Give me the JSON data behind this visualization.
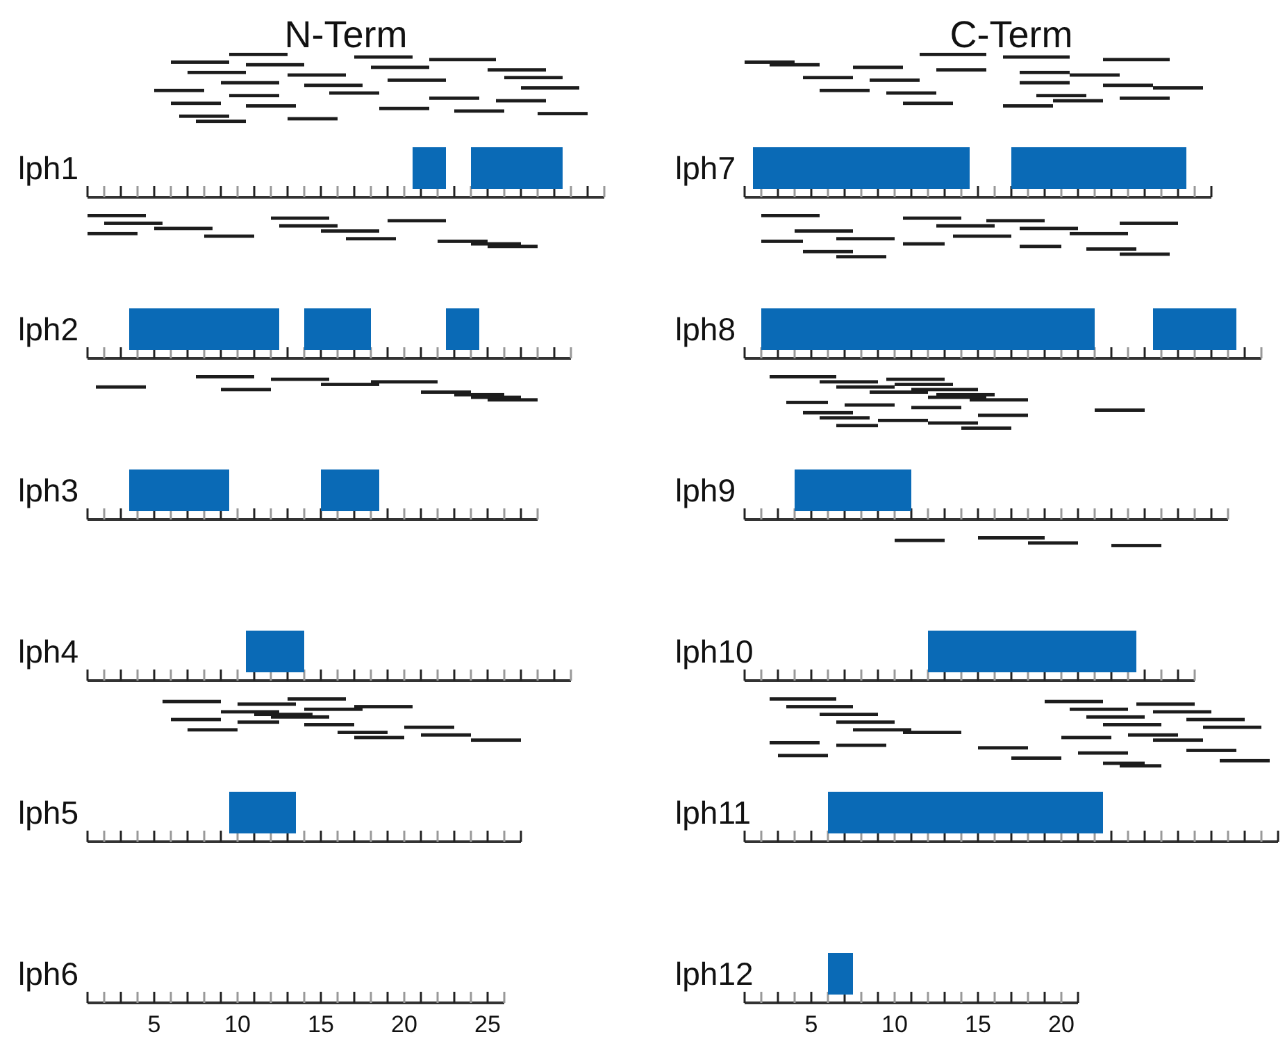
{
  "chart_data": [
    {
      "type": "bar",
      "orientation": "horizontal",
      "title": "N-Term",
      "categories": [
        null,
        "lph1",
        null,
        "lph2",
        null,
        "lph3",
        null,
        "lph4",
        null,
        "lph5",
        null,
        "lph6"
      ],
      "xlim": [
        1,
        32
      ],
      "xticks": [
        5,
        10,
        15,
        20,
        25
      ],
      "series": [
        {
          "color": "#333333",
          "base": [
            null,
            1,
            null,
            1,
            null,
            1,
            null,
            1,
            null,
            1,
            null,
            1
          ],
          "values": [
            null,
            31,
            null,
            29,
            null,
            27,
            null,
            29,
            null,
            26,
            null,
            25
          ]
        },
        {
          "color": "#0a6ab6",
          "base": [
            null,
            20.5,
            null,
            3.5,
            null,
            3.5,
            null,
            10.5,
            null,
            9.5,
            null,
            null
          ],
          "values": [
            null,
            2,
            null,
            9,
            null,
            6,
            null,
            3.5,
            null,
            4,
            null,
            null
          ]
        },
        {
          "color": "#0a6ab6",
          "base": [
            null,
            24,
            null,
            14,
            null,
            15,
            null,
            null,
            null,
            null,
            null,
            null
          ],
          "values": [
            null,
            5.5,
            null,
            4,
            null,
            3.5,
            null,
            null,
            null,
            null,
            null,
            null
          ]
        },
        {
          "color": "#0a6ab6",
          "base": [
            null,
            null,
            null,
            22.5,
            null,
            null,
            null,
            null,
            null,
            null,
            null,
            null
          ],
          "values": [
            null,
            null,
            null,
            2,
            null,
            null,
            null,
            null,
            null,
            null,
            null,
            null
          ]
        },
        {
          "color": "#1c1c1c",
          "base": [
            9.5,
            null,
            1,
            null,
            7.5,
            null,
            null,
            null,
            13,
            null,
            null,
            null
          ],
          "values": [
            3.5,
            null,
            3.5,
            null,
            3.5,
            null,
            null,
            null,
            3.5,
            null,
            null,
            null
          ]
        },
        {
          "color": "#1c1c1c",
          "base": [
            17,
            null,
            12,
            null,
            12,
            null,
            null,
            null,
            5.5,
            null,
            null,
            null
          ],
          "values": [
            3.5,
            null,
            3.5,
            null,
            3.5,
            null,
            null,
            null,
            3.5,
            null,
            null,
            null
          ]
        },
        {
          "color": "#1c1c1c",
          "base": [
            21.5,
            null,
            19,
            null,
            18,
            null,
            null,
            null,
            10,
            null,
            null,
            null
          ],
          "values": [
            4,
            null,
            3.5,
            null,
            4,
            null,
            null,
            null,
            3.5,
            null,
            null,
            null
          ]
        },
        {
          "color": "#1c1c1c",
          "base": [
            6,
            null,
            2,
            null,
            15,
            null,
            null,
            null,
            17,
            null,
            null,
            null
          ],
          "values": [
            3.5,
            null,
            3.5,
            null,
            3.5,
            null,
            null,
            null,
            3.5,
            null,
            null,
            null
          ]
        },
        {
          "color": "#1c1c1c",
          "base": [
            10.5,
            null,
            12.5,
            null,
            1.5,
            null,
            null,
            null,
            14,
            null,
            null,
            null
          ],
          "values": [
            3.5,
            null,
            3.5,
            null,
            3,
            null,
            null,
            null,
            3.5,
            null,
            null,
            null
          ]
        },
        {
          "color": "#1c1c1c",
          "base": [
            18,
            null,
            5,
            null,
            9,
            null,
            null,
            null,
            9,
            null,
            null,
            null
          ],
          "values": [
            3.5,
            null,
            3.5,
            null,
            3,
            null,
            null,
            null,
            3.5,
            null,
            null,
            null
          ]
        },
        {
          "color": "#1c1c1c",
          "base": [
            25,
            null,
            15,
            null,
            21,
            null,
            null,
            null,
            11,
            null,
            null,
            null
          ],
          "values": [
            3.5,
            null,
            3.5,
            null,
            3,
            null,
            null,
            null,
            3.5,
            null,
            null,
            null
          ]
        },
        {
          "color": "#1c1c1c",
          "base": [
            7,
            null,
            1,
            null,
            23,
            null,
            null,
            null,
            12,
            null,
            null,
            null
          ],
          "values": [
            3.5,
            null,
            3,
            null,
            3,
            null,
            null,
            null,
            3.5,
            null,
            null,
            null
          ]
        },
        {
          "color": "#1c1c1c",
          "base": [
            13,
            null,
            8,
            null,
            24,
            null,
            null,
            null,
            6,
            null,
            null,
            null
          ],
          "values": [
            3.5,
            null,
            3,
            null,
            3,
            null,
            null,
            null,
            3,
            null,
            null,
            null
          ]
        },
        {
          "color": "#1c1c1c",
          "base": [
            26,
            null,
            16.5,
            null,
            25,
            null,
            null,
            null,
            10,
            null,
            null,
            null
          ],
          "values": [
            3.5,
            null,
            3,
            null,
            3,
            null,
            null,
            null,
            2.5,
            null,
            null,
            null
          ]
        },
        {
          "color": "#1c1c1c",
          "base": [
            19,
            null,
            22,
            null,
            null,
            null,
            null,
            null,
            14,
            null,
            null,
            null
          ],
          "values": [
            3.5,
            null,
            3,
            null,
            null,
            null,
            null,
            null,
            3,
            null,
            null,
            null
          ]
        },
        {
          "color": "#1c1c1c",
          "base": [
            9,
            null,
            24,
            null,
            null,
            null,
            null,
            null,
            20,
            null,
            null,
            null
          ],
          "values": [
            3.5,
            null,
            3,
            null,
            null,
            null,
            null,
            null,
            3,
            null,
            null,
            null
          ]
        },
        {
          "color": "#1c1c1c",
          "base": [
            14,
            null,
            25,
            null,
            null,
            null,
            null,
            null,
            7,
            null,
            null,
            null
          ],
          "values": [
            3.5,
            null,
            3,
            null,
            null,
            null,
            null,
            null,
            3,
            null,
            null,
            null
          ]
        },
        {
          "color": "#1c1c1c",
          "base": [
            27,
            null,
            null,
            null,
            null,
            null,
            null,
            null,
            16,
            null,
            null,
            null
          ],
          "values": [
            3.5,
            null,
            null,
            null,
            null,
            null,
            null,
            null,
            3,
            null,
            null,
            null
          ]
        },
        {
          "color": "#1c1c1c",
          "base": [
            5,
            null,
            null,
            null,
            null,
            null,
            null,
            null,
            21,
            null,
            null,
            null
          ],
          "values": [
            3,
            null,
            null,
            null,
            null,
            null,
            null,
            null,
            3,
            null,
            null,
            null
          ]
        },
        {
          "color": "#1c1c1c",
          "base": [
            15.5,
            null,
            null,
            null,
            null,
            null,
            null,
            null,
            17,
            null,
            null,
            null
          ],
          "values": [
            3,
            null,
            null,
            null,
            null,
            null,
            null,
            null,
            3,
            null,
            null,
            null
          ]
        },
        {
          "color": "#1c1c1c",
          "base": [
            9.5,
            null,
            null,
            null,
            null,
            null,
            null,
            null,
            24,
            null,
            null,
            null
          ],
          "values": [
            3,
            null,
            null,
            null,
            null,
            null,
            null,
            null,
            3,
            null,
            null,
            null
          ]
        },
        {
          "color": "#1c1c1c",
          "base": [
            21.5,
            null,
            null,
            null,
            null,
            null,
            null,
            null,
            null,
            null,
            null,
            null
          ],
          "values": [
            3,
            null,
            null,
            null,
            null,
            null,
            null,
            null,
            null,
            null,
            null,
            null
          ]
        },
        {
          "color": "#1c1c1c",
          "base": [
            25.5,
            null,
            null,
            null,
            null,
            null,
            null,
            null,
            null,
            null,
            null,
            null
          ],
          "values": [
            3,
            null,
            null,
            null,
            null,
            null,
            null,
            null,
            null,
            null,
            null,
            null
          ]
        },
        {
          "color": "#1c1c1c",
          "base": [
            6,
            null,
            null,
            null,
            null,
            null,
            null,
            null,
            null,
            null,
            null,
            null
          ],
          "values": [
            3,
            null,
            null,
            null,
            null,
            null,
            null,
            null,
            null,
            null,
            null,
            null
          ]
        },
        {
          "color": "#1c1c1c",
          "base": [
            10.5,
            null,
            null,
            null,
            null,
            null,
            null,
            null,
            null,
            null,
            null,
            null
          ],
          "values": [
            3,
            null,
            null,
            null,
            null,
            null,
            null,
            null,
            null,
            null,
            null,
            null
          ]
        },
        {
          "color": "#1c1c1c",
          "base": [
            18.5,
            null,
            null,
            null,
            null,
            null,
            null,
            null,
            null,
            null,
            null,
            null
          ],
          "values": [
            3,
            null,
            null,
            null,
            null,
            null,
            null,
            null,
            null,
            null,
            null,
            null
          ]
        },
        {
          "color": "#1c1c1c",
          "base": [
            23,
            null,
            null,
            null,
            null,
            null,
            null,
            null,
            null,
            null,
            null,
            null
          ],
          "values": [
            3,
            null,
            null,
            null,
            null,
            null,
            null,
            null,
            null,
            null,
            null,
            null
          ]
        },
        {
          "color": "#1c1c1c",
          "base": [
            28,
            null,
            null,
            null,
            null,
            null,
            null,
            null,
            null,
            null,
            null,
            null
          ],
          "values": [
            3,
            null,
            null,
            null,
            null,
            null,
            null,
            null,
            null,
            null,
            null,
            null
          ]
        },
        {
          "color": "#1c1c1c",
          "base": [
            6.5,
            null,
            null,
            null,
            null,
            null,
            null,
            null,
            null,
            null,
            null,
            null
          ],
          "values": [
            3,
            null,
            null,
            null,
            null,
            null,
            null,
            null,
            null,
            null,
            null,
            null
          ]
        },
        {
          "color": "#1c1c1c",
          "base": [
            13,
            null,
            null,
            null,
            null,
            null,
            null,
            null,
            null,
            null,
            null,
            null
          ],
          "values": [
            3,
            null,
            null,
            null,
            null,
            null,
            null,
            null,
            null,
            null,
            null,
            null
          ]
        },
        {
          "color": "#1c1c1c",
          "base": [
            7.5,
            null,
            null,
            null,
            null,
            null,
            null,
            null,
            null,
            null,
            null,
            null
          ],
          "values": [
            3,
            null,
            null,
            null,
            null,
            null,
            null,
            null,
            null,
            null,
            null,
            null
          ]
        }
      ]
    },
    {
      "type": "bar",
      "orientation": "horizontal",
      "title": "C-Term",
      "categories": [
        null,
        "lph7",
        null,
        "lph8",
        null,
        "lph9",
        null,
        "lph10",
        null,
        "lph11",
        null,
        "lph12"
      ],
      "xlim": [
        1,
        33
      ],
      "xticks": [
        5,
        10,
        15,
        20
      ],
      "series": [
        {
          "color": "#333333",
          "base": [
            null,
            1,
            null,
            1,
            null,
            1,
            null,
            1,
            null,
            1,
            null,
            1
          ],
          "values": [
            null,
            28,
            null,
            31,
            null,
            29,
            null,
            27,
            null,
            32,
            null,
            20
          ]
        },
        {
          "color": "#0a6ab6",
          "base": [
            null,
            1.5,
            null,
            2,
            null,
            4,
            null,
            12,
            null,
            6,
            null,
            6
          ],
          "values": [
            null,
            13,
            null,
            20,
            null,
            7,
            null,
            12.5,
            null,
            16.5,
            null,
            1.5
          ]
        },
        {
          "color": "#0a6ab6",
          "base": [
            null,
            17,
            null,
            25.5,
            null,
            null,
            null,
            null,
            null,
            null,
            null,
            null
          ],
          "values": [
            null,
            10.5,
            null,
            5,
            null,
            null,
            null,
            null,
            null,
            null,
            null,
            null
          ]
        },
        {
          "color": "#1c1c1c",
          "base": [
            11.5,
            null,
            2,
            null,
            2.5,
            null,
            15,
            null,
            2.5,
            null,
            null,
            null
          ],
          "values": [
            4,
            null,
            3.5,
            null,
            4,
            null,
            4,
            null,
            4,
            null,
            null,
            null
          ]
        },
        {
          "color": "#1c1c1c",
          "base": [
            16.5,
            null,
            10.5,
            null,
            9.5,
            null,
            10,
            null,
            19,
            null,
            null,
            null
          ],
          "values": [
            4,
            null,
            3.5,
            null,
            3.5,
            null,
            3,
            null,
            3.5,
            null,
            null,
            null
          ]
        },
        {
          "color": "#1c1c1c",
          "base": [
            22.5,
            null,
            15.5,
            null,
            5.5,
            null,
            18,
            null,
            24.5,
            null,
            null,
            null
          ],
          "values": [
            4,
            null,
            3.5,
            null,
            3.5,
            null,
            3,
            null,
            3.5,
            null,
            null,
            null
          ]
        },
        {
          "color": "#1c1c1c",
          "base": [
            1,
            null,
            23.5,
            null,
            10,
            null,
            23,
            null,
            3.5,
            null,
            null,
            null
          ],
          "values": [
            3,
            null,
            3.5,
            null,
            3.5,
            null,
            3,
            null,
            4,
            null,
            null,
            null
          ]
        },
        {
          "color": "#1c1c1c",
          "base": [
            2.5,
            null,
            12.5,
            null,
            6.5,
            null,
            null,
            null,
            20.5,
            null,
            null,
            null
          ],
          "values": [
            3,
            null,
            3.5,
            null,
            3.5,
            null,
            null,
            null,
            3.5,
            null,
            null,
            null
          ]
        },
        {
          "color": "#1c1c1c",
          "base": [
            7.5,
            null,
            17.5,
            null,
            11,
            null,
            null,
            null,
            25.5,
            null,
            null,
            null
          ],
          "values": [
            3,
            null,
            3.5,
            null,
            4,
            null,
            null,
            null,
            3.5,
            null,
            null,
            null
          ]
        },
        {
          "color": "#1c1c1c",
          "base": [
            12.5,
            null,
            4,
            null,
            8.5,
            null,
            null,
            null,
            5.5,
            null,
            null,
            null
          ],
          "values": [
            3,
            null,
            3.5,
            null,
            3.5,
            null,
            null,
            null,
            3.5,
            null,
            null,
            null
          ]
        },
        {
          "color": "#1c1c1c",
          "base": [
            17.5,
            null,
            20.5,
            null,
            12.5,
            null,
            null,
            null,
            21.5,
            null,
            null,
            null
          ],
          "values": [
            3,
            null,
            3.5,
            null,
            3.5,
            null,
            null,
            null,
            3.5,
            null,
            null,
            null
          ]
        },
        {
          "color": "#1c1c1c",
          "base": [
            20.5,
            null,
            13.5,
            null,
            12,
            null,
            null,
            null,
            27.5,
            null,
            null,
            null
          ],
          "values": [
            3,
            null,
            3.5,
            null,
            3.5,
            null,
            null,
            null,
            3.5,
            null,
            null,
            null
          ]
        },
        {
          "color": "#1c1c1c",
          "base": [
            4.5,
            null,
            6.5,
            null,
            14.5,
            null,
            null,
            null,
            6.5,
            null,
            null,
            null
          ],
          "values": [
            3,
            null,
            3.5,
            null,
            3.5,
            null,
            null,
            null,
            3.5,
            null,
            null,
            null
          ]
        },
        {
          "color": "#1c1c1c",
          "base": [
            8.5,
            null,
            2,
            null,
            3.5,
            null,
            null,
            null,
            22.5,
            null,
            null,
            null
          ],
          "values": [
            3,
            null,
            2.5,
            null,
            2.5,
            null,
            null,
            null,
            3.5,
            null,
            null,
            null
          ]
        },
        {
          "color": "#1c1c1c",
          "base": [
            17.5,
            null,
            10.5,
            null,
            7,
            null,
            null,
            null,
            28.5,
            null,
            null,
            null
          ],
          "values": [
            3,
            null,
            2.5,
            null,
            3,
            null,
            null,
            null,
            3.5,
            null,
            null,
            null
          ]
        },
        {
          "color": "#1c1c1c",
          "base": [
            22.5,
            null,
            17.5,
            null,
            11,
            null,
            null,
            null,
            7.5,
            null,
            null,
            null
          ],
          "values": [
            3,
            null,
            2.5,
            null,
            3,
            null,
            null,
            null,
            3.5,
            null,
            null,
            null
          ]
        },
        {
          "color": "#1c1c1c",
          "base": [
            25.5,
            null,
            21.5,
            null,
            22,
            null,
            null,
            null,
            10.5,
            null,
            null,
            null
          ],
          "values": [
            3,
            null,
            3,
            null,
            3,
            null,
            null,
            null,
            3.5,
            null,
            null,
            null
          ]
        },
        {
          "color": "#1c1c1c",
          "base": [
            5.5,
            null,
            4.5,
            null,
            4.5,
            null,
            null,
            null,
            24,
            null,
            null,
            null
          ],
          "values": [
            3,
            null,
            3,
            null,
            3,
            null,
            null,
            null,
            3,
            null,
            null,
            null
          ]
        },
        {
          "color": "#1c1c1c",
          "base": [
            9.5,
            null,
            23.5,
            null,
            15,
            null,
            null,
            null,
            20,
            null,
            null,
            null
          ],
          "values": [
            3,
            null,
            3,
            null,
            3,
            null,
            null,
            null,
            3,
            null,
            null,
            null
          ]
        },
        {
          "color": "#1c1c1c",
          "base": [
            18.5,
            null,
            6.5,
            null,
            5.5,
            null,
            null,
            null,
            25.5,
            null,
            null,
            null
          ],
          "values": [
            3,
            null,
            3,
            null,
            3,
            null,
            null,
            null,
            3,
            null,
            null,
            null
          ]
        },
        {
          "color": "#1c1c1c",
          "base": [
            23.5,
            null,
            null,
            null,
            9,
            null,
            null,
            null,
            2.5,
            null,
            null,
            null
          ],
          "values": [
            3,
            null,
            null,
            null,
            3,
            null,
            null,
            null,
            3,
            null,
            null,
            null
          ]
        },
        {
          "color": "#1c1c1c",
          "base": [
            19.5,
            null,
            null,
            null,
            12,
            null,
            null,
            null,
            6.5,
            null,
            null,
            null
          ],
          "values": [
            3,
            null,
            null,
            null,
            3,
            null,
            null,
            null,
            3,
            null,
            null,
            null
          ]
        },
        {
          "color": "#1c1c1c",
          "base": [
            10.5,
            null,
            null,
            null,
            6.5,
            null,
            null,
            null,
            15,
            null,
            null,
            null
          ],
          "values": [
            3,
            null,
            null,
            null,
            2.5,
            null,
            null,
            null,
            3,
            null,
            null,
            null
          ]
        },
        {
          "color": "#1c1c1c",
          "base": [
            16.5,
            null,
            null,
            null,
            14,
            null,
            null,
            null,
            27.5,
            null,
            null,
            null
          ],
          "values": [
            3,
            null,
            null,
            null,
            3,
            null,
            null,
            null,
            3,
            null,
            null,
            null
          ]
        },
        {
          "color": "#1c1c1c",
          "base": [
            null,
            null,
            null,
            null,
            null,
            null,
            null,
            null,
            21,
            null,
            null,
            null
          ],
          "values": [
            null,
            null,
            null,
            null,
            null,
            null,
            null,
            null,
            3,
            null,
            null,
            null
          ]
        },
        {
          "color": "#1c1c1c",
          "base": [
            null,
            null,
            null,
            null,
            null,
            null,
            null,
            null,
            3,
            null,
            null,
            null
          ],
          "values": [
            null,
            null,
            null,
            null,
            null,
            null,
            null,
            null,
            3,
            null,
            null,
            null
          ]
        },
        {
          "color": "#1c1c1c",
          "base": [
            null,
            null,
            null,
            null,
            null,
            null,
            null,
            null,
            17,
            null,
            null,
            null
          ],
          "values": [
            null,
            null,
            null,
            null,
            null,
            null,
            null,
            null,
            3,
            null,
            null,
            null
          ]
        },
        {
          "color": "#1c1c1c",
          "base": [
            null,
            null,
            null,
            null,
            null,
            null,
            null,
            null,
            29.5,
            null,
            null,
            null
          ],
          "values": [
            null,
            null,
            null,
            null,
            null,
            null,
            null,
            null,
            3,
            null,
            null,
            null
          ]
        },
        {
          "color": "#1c1c1c",
          "base": [
            null,
            null,
            null,
            null,
            null,
            null,
            null,
            null,
            22.5,
            null,
            null,
            null
          ],
          "values": [
            null,
            null,
            null,
            null,
            null,
            null,
            null,
            null,
            2.5,
            null,
            null,
            null
          ]
        },
        {
          "color": "#1c1c1c",
          "base": [
            null,
            null,
            null,
            null,
            null,
            null,
            null,
            null,
            23.5,
            null,
            null,
            null
          ],
          "values": [
            null,
            null,
            null,
            null,
            null,
            null,
            null,
            null,
            2.5,
            null,
            null,
            null
          ]
        }
      ]
    }
  ]
}
